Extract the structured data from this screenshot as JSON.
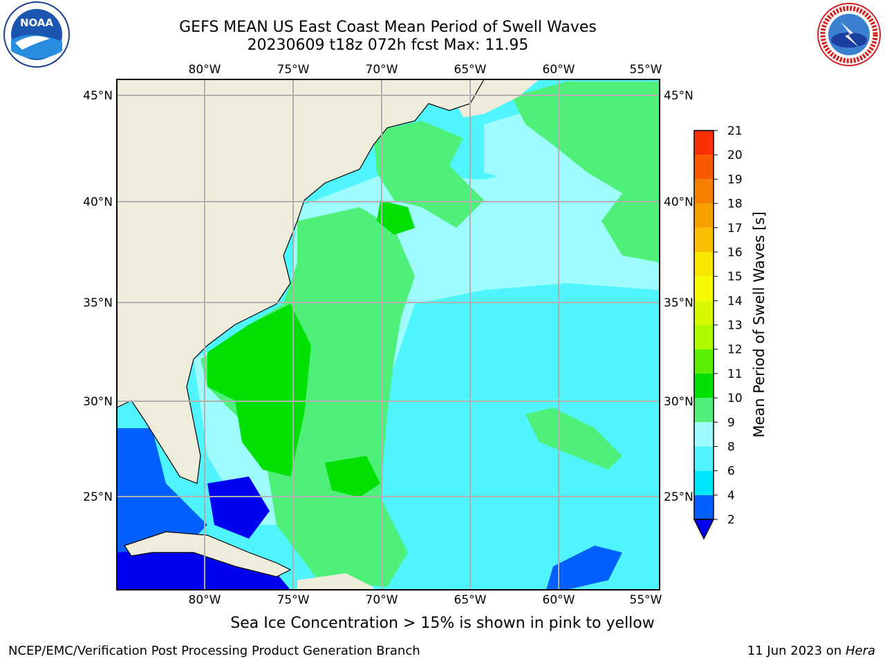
{
  "title": {
    "line1": "GEFS MEAN US East Coast Mean Period of Swell Waves",
    "line2": "20230609 t18z 072h fcst   Max: 11.95"
  },
  "logos": {
    "left": "noaa-logo",
    "left_text": "NOAA",
    "right": "nws-logo",
    "right_text": "NATIONAL WEATHER SERVICE"
  },
  "map": {
    "lon_ticks": [
      "80°W",
      "75°W",
      "70°W",
      "65°W",
      "60°W",
      "55°W"
    ],
    "lat_ticks": [
      "45°N",
      "40°N",
      "35°N",
      "30°N",
      "25°N"
    ],
    "land_color": "#efecdc",
    "grid_color": "#b0b0b0"
  },
  "colorbar": {
    "title": "Mean Period of Swell Waves [s]",
    "levels": [
      "2",
      "4",
      "6",
      "8",
      "9",
      "10",
      "11",
      "12",
      "13",
      "14",
      "15",
      "16",
      "17",
      "18",
      "19",
      "20",
      "21"
    ],
    "colors": [
      "#0060ff",
      "#00e5ff",
      "#4ff4ff",
      "#9efcff",
      "#4ff07a",
      "#00e000",
      "#58f000",
      "#b0f800",
      "#d8f800",
      "#f8f800",
      "#f8e800",
      "#f8c000",
      "#f8a000",
      "#f88000",
      "#f85800",
      "#f83000",
      "#f80000"
    ],
    "under_color": "#0000f0"
  },
  "note": "Sea Ice Concentration > 15% is shown in pink to yellow",
  "footer": {
    "left": "NCEP/EMC/Verification Post Processing Product Generation Branch",
    "right_date": "11 Jun 2023 on ",
    "right_machine": "Hera"
  }
}
